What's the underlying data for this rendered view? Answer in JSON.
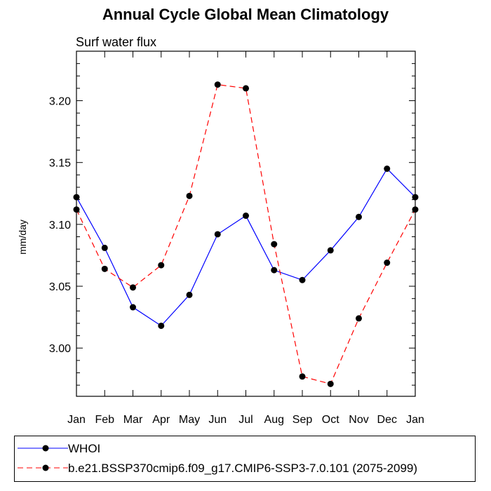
{
  "chart_data": {
    "type": "line",
    "title": "Annual Cycle Global Mean Climatology",
    "subtitle": "Surf water flux",
    "xlabel": "",
    "ylabel": "mm/day",
    "categories": [
      "Jan",
      "Feb",
      "Mar",
      "Apr",
      "May",
      "Jun",
      "Jul",
      "Aug",
      "Sep",
      "Oct",
      "Nov",
      "Dec",
      "Jan"
    ],
    "ylim": [
      2.961,
      3.24
    ],
    "yticks": [
      "3.00",
      "3.05",
      "3.10",
      "3.15",
      "3.20"
    ],
    "grid": false,
    "legend_position": "bottom",
    "series": [
      {
        "name": "WHOI",
        "color": "#0000ff",
        "dash": "solid",
        "values": [
          3.122,
          3.081,
          3.033,
          3.018,
          3.043,
          3.092,
          3.107,
          3.063,
          3.055,
          3.079,
          3.106,
          3.145,
          3.122
        ]
      },
      {
        "name": "b.e21.BSSP370cmip6.f09_g17.CMIP6-SSP3-7.0.101 (2075-2099)",
        "color": "#ff0000",
        "dash": "dashed",
        "values": [
          3.112,
          3.064,
          3.049,
          3.067,
          3.123,
          3.213,
          3.21,
          3.084,
          2.977,
          2.971,
          3.024,
          3.069,
          3.112
        ]
      }
    ]
  }
}
